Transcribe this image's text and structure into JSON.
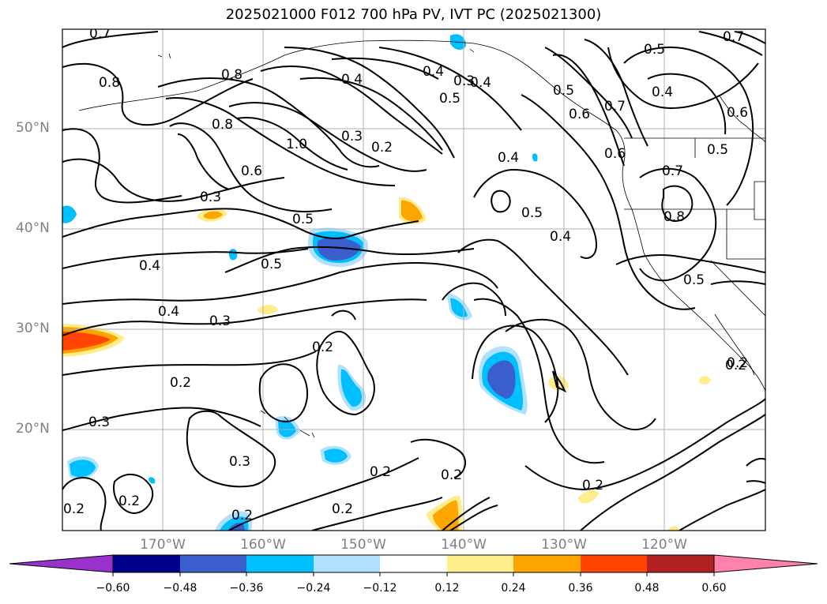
{
  "title": "2025021000 F012 700 hPa PV, IVT PC (2025021300)",
  "latitude_labels": [
    "50°N",
    "40°N",
    "30°N",
    "20°N"
  ],
  "longitude_labels": [
    "170°W",
    "160°W",
    "150°W",
    "140°W",
    "130°W",
    "120°W"
  ],
  "colorbar": {
    "tick_labels": [
      "−0.60",
      "−0.48",
      "−0.36",
      "−0.24",
      "−0.12",
      "0.12",
      "0.24",
      "0.36",
      "0.48",
      "0.60"
    ],
    "colors": [
      "#9932cc",
      "#00008b",
      "#3a5fcd",
      "#00bfff",
      "#b0e2ff",
      "#ffffff",
      "#ffec8b",
      "#ffa500",
      "#ff4500",
      "#b22222",
      "#ff82ab"
    ]
  },
  "contour_labels": [
    "0.7",
    "0.8",
    "0.8",
    "0.8",
    "0.6",
    "1.0",
    "0.4",
    "0.4",
    "0.3",
    "0.5",
    "0.3",
    "0.2",
    "0.3",
    "0.5",
    "0.5",
    "0.5",
    "0.4",
    "0.4",
    "0.4",
    "0.3",
    "0.2",
    "0.2",
    "0.2",
    "0.3",
    "0.3",
    "0.2",
    "0.2",
    "0.2",
    "0.2",
    "0.2",
    "0.2",
    "0.2",
    "0.7",
    "0.5",
    "0.4",
    "0.6",
    "0.5",
    "0.6",
    "0.7",
    "0.8",
    "0.5",
    "0.2",
    "0.4",
    "0.4",
    "0.5",
    "0.6",
    "0.7"
  ]
}
